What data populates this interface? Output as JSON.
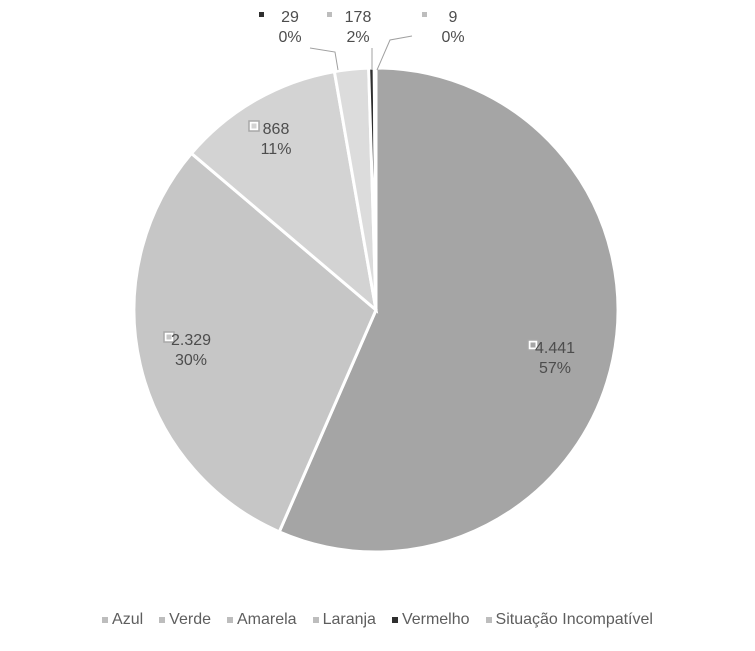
{
  "chart_data": {
    "type": "pie",
    "title": "",
    "legend_position": "bottom",
    "slices": [
      {
        "name": "Azul",
        "value": 4441,
        "value_label": "4.441",
        "percent_label": "57%",
        "color": "#a5a5a5"
      },
      {
        "name": "Verde",
        "value": 2329,
        "value_label": "2.329",
        "percent_label": "30%",
        "color": "#c6c6c6"
      },
      {
        "name": "Amarela",
        "value": 868,
        "value_label": "868",
        "percent_label": "11%",
        "color": "#d3d3d3"
      },
      {
        "name": "Laranja",
        "value": 178,
        "value_label": "178",
        "percent_label": "2%",
        "color": "#dcdcdc"
      },
      {
        "name": "Vermelho",
        "value": 29,
        "value_label": "29",
        "percent_label": "0%",
        "color": "#2f2f2f"
      },
      {
        "name": "Situação Incompatível",
        "value": 9,
        "value_label": "9",
        "percent_label": "0%",
        "color": "#d9d9d9"
      }
    ],
    "legend": [
      "Azul",
      "Verde",
      "Amarela",
      "Laranja",
      "Vermelho",
      "Situação Incompatível"
    ]
  }
}
